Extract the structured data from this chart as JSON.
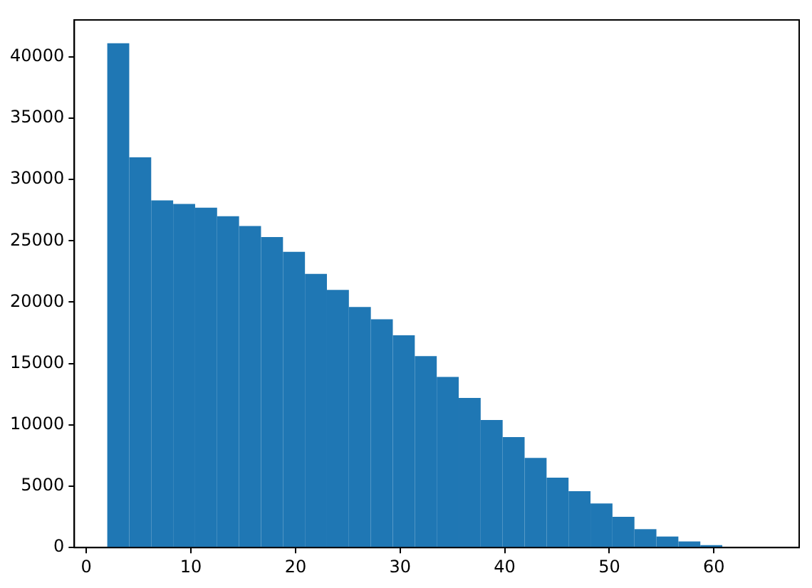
{
  "chart_data": {
    "type": "histogram",
    "color": "#1f77b4",
    "bins": [
      2,
      4.1,
      6.2,
      8.3,
      10.4,
      12.5,
      14.6,
      16.7,
      18.8,
      20.9,
      23,
      25.1,
      27.2,
      29.3,
      31.4,
      33.5,
      35.6,
      37.7,
      39.8,
      41.9,
      44,
      46.1,
      48.2,
      50.3,
      52.4,
      54.5,
      56.6,
      58.7,
      60.8,
      62.9,
      65
    ],
    "values": [
      41100,
      31800,
      28300,
      28000,
      27700,
      27000,
      26200,
      25300,
      24100,
      22300,
      21000,
      19600,
      18600,
      17300,
      15600,
      13900,
      12200,
      10400,
      9000,
      7300,
      5700,
      4600,
      3600,
      2500,
      1500,
      900,
      500,
      200,
      0,
      0
    ],
    "xlim": [
      -1.15,
      68.15
    ],
    "xticks": [
      0,
      10,
      20,
      30,
      40,
      50,
      60
    ],
    "ylim": [
      0,
      43000
    ],
    "yticks": [
      0,
      5000,
      10000,
      15000,
      20000,
      25000,
      30000,
      35000,
      40000
    ],
    "grid": false,
    "legend": false
  }
}
